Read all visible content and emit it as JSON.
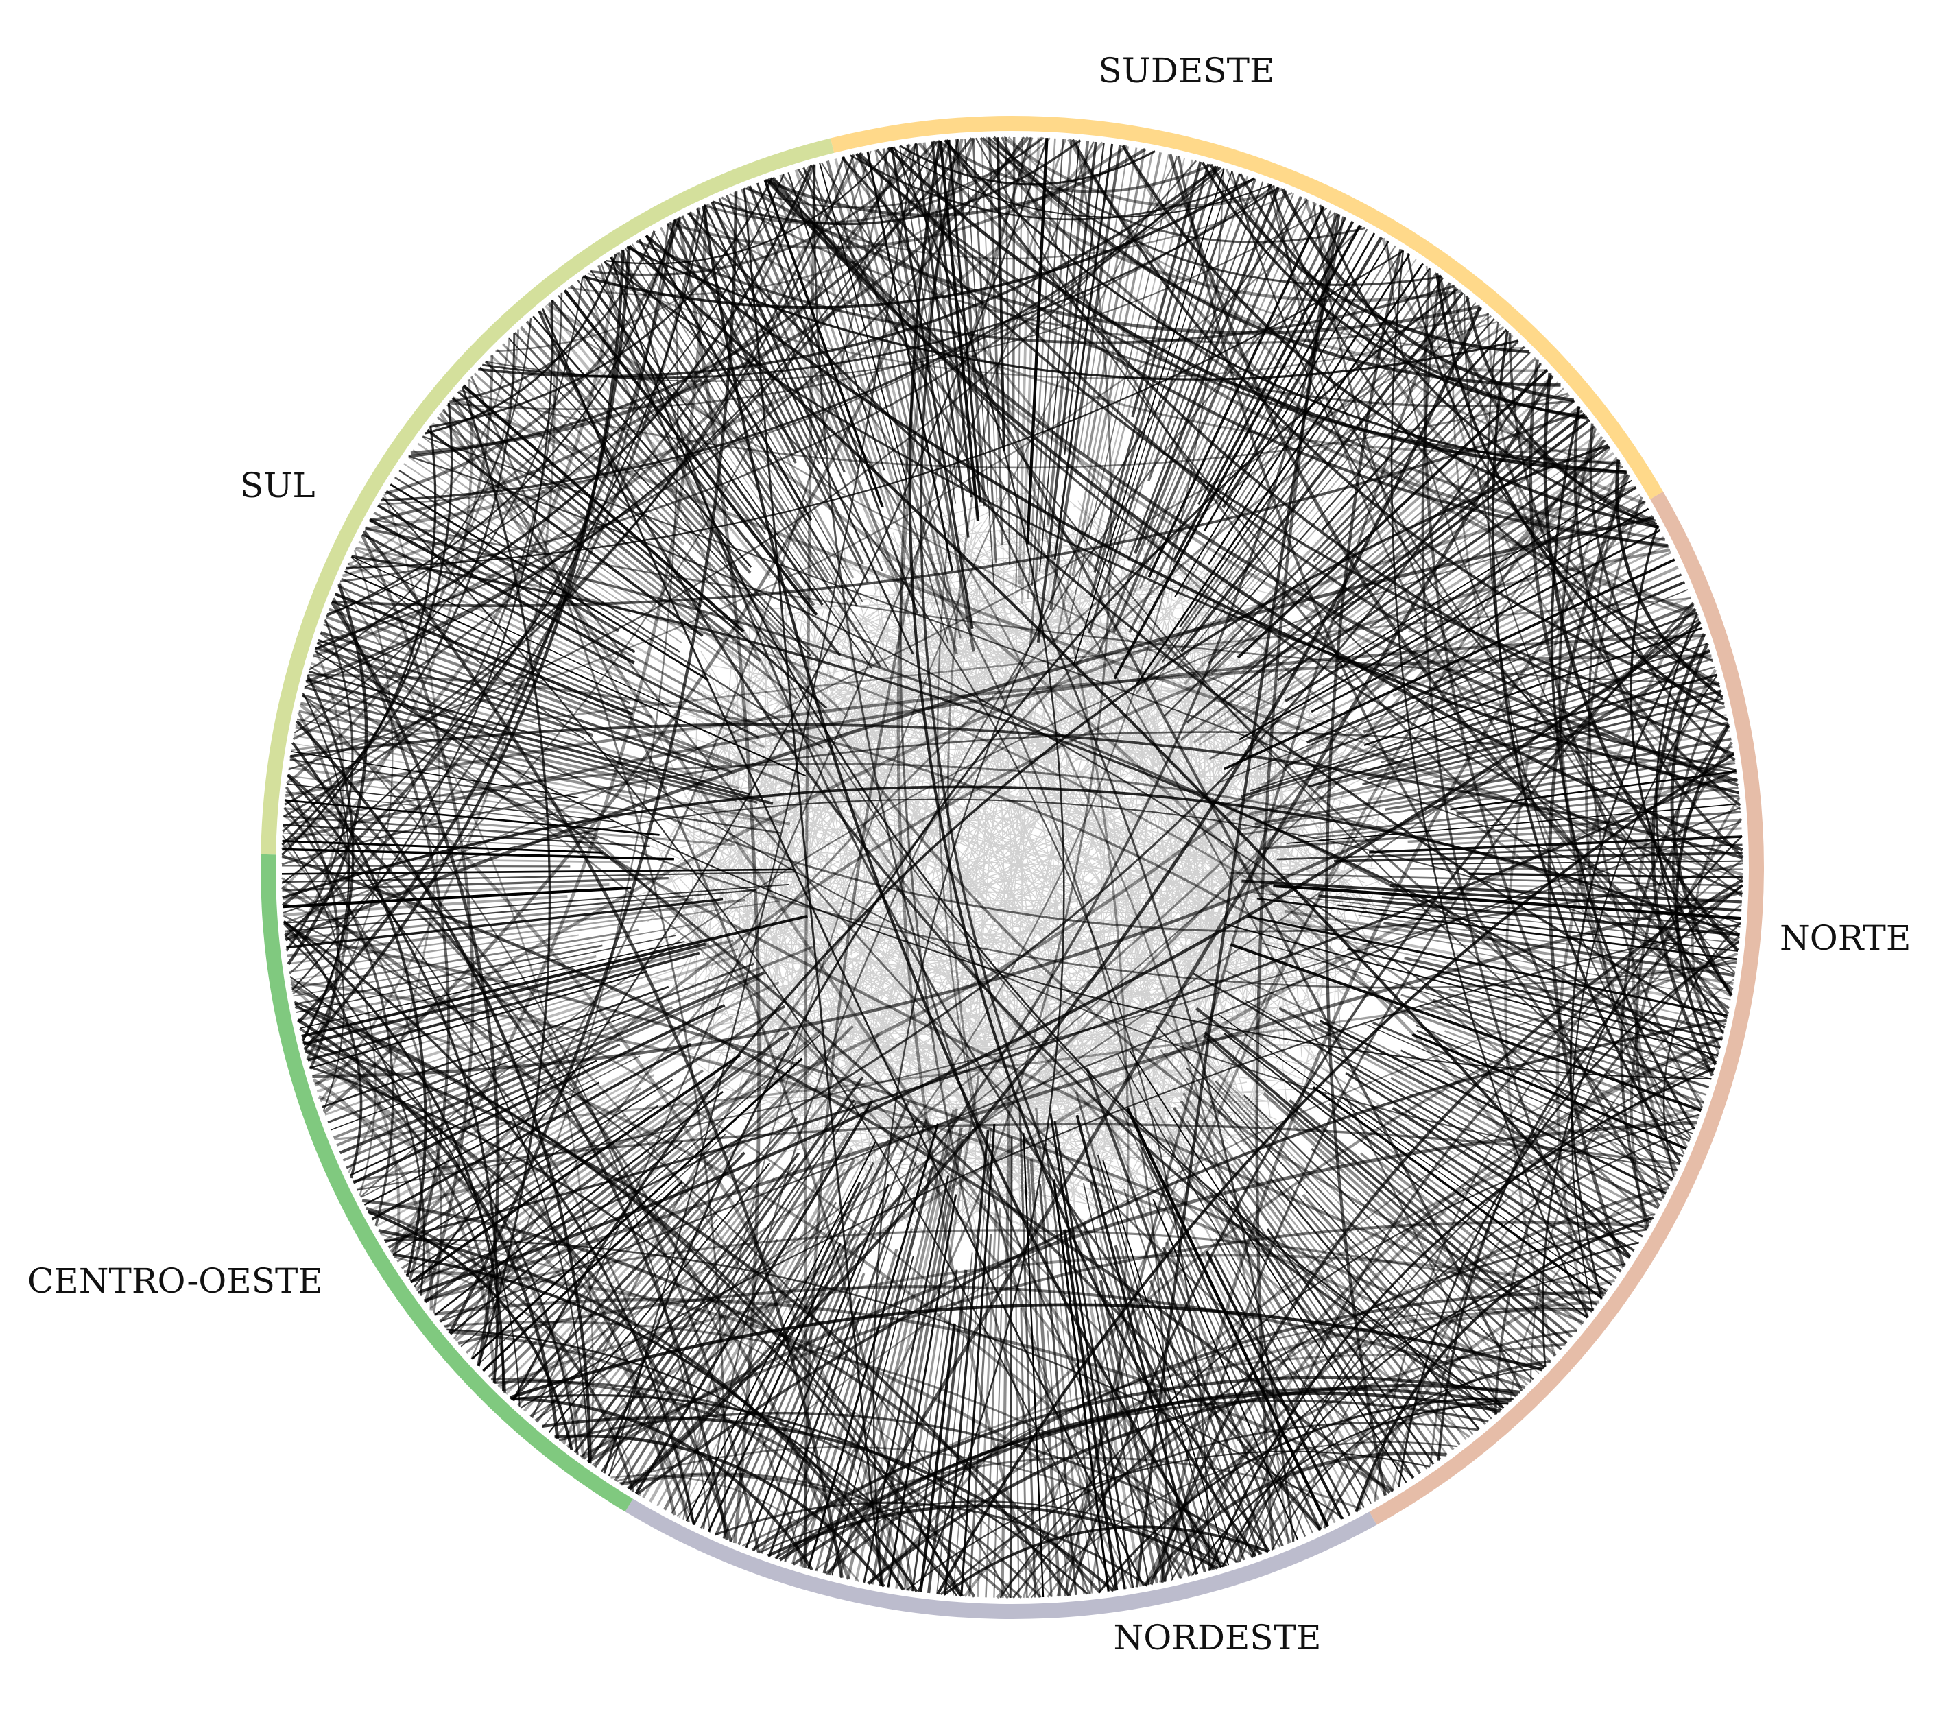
{
  "regions": [
    {
      "key": "sudeste",
      "label": "SUDESTE",
      "color": "#ffd98a"
    },
    {
      "key": "norte",
      "label": "NORTE",
      "color": "#e6bda8"
    },
    {
      "key": "nordeste",
      "label": "NORDESTE",
      "color": "#bcbccd"
    },
    {
      "key": "centro_oeste",
      "label": "CENTRO-OESTE",
      "color": "#80c97f"
    },
    {
      "key": "sul",
      "label": "SUL",
      "color": "#d4e09c"
    }
  ],
  "style": {
    "edge_color": "#000000",
    "background": "#ffffff"
  }
}
